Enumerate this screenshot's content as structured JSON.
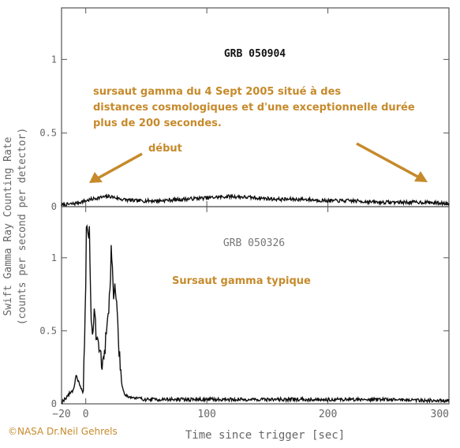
{
  "chart_data": [
    {
      "type": "line",
      "title": "GRB 050904",
      "annotation": "sursaut gamma du 4 Sept 2005 situé à des distances cosmologiques et d'une exceptionnelle durée plus de 200 secondes.",
      "annotation_lines": [
        "sursaut gamma du 4 Sept 2005 situé à des",
        "distances cosmologiques et d'une exceptionnelle durée",
        "plus de 200 secondes."
      ],
      "arrow_label": "début",
      "annotation_color": "#c68a2b",
      "xlim": [
        -20,
        300
      ],
      "ylim": [
        0,
        1.35
      ],
      "y_ticks": [
        0,
        0.5,
        1
      ],
      "y_tick_labels": [
        "0",
        "0.5",
        "1"
      ],
      "x_tick_labels_shown": false,
      "grid": false,
      "series_profile": {
        "x": [
          -20,
          -10,
          -5,
          0,
          10,
          20,
          30,
          40,
          60,
          80,
          100,
          120,
          140,
          160,
          180,
          200,
          220,
          240,
          260,
          280,
          300
        ],
        "y": [
          0.01,
          0.02,
          0.03,
          0.04,
          0.06,
          0.07,
          0.05,
          0.04,
          0.04,
          0.05,
          0.06,
          0.07,
          0.06,
          0.05,
          0.05,
          0.04,
          0.04,
          0.03,
          0.03,
          0.03,
          0.02
        ]
      }
    },
    {
      "type": "line",
      "title": "GRB 050326",
      "annotation": "Sursaut gamma typique",
      "annotation_color": "#c68a2b",
      "xlim": [
        -20,
        300
      ],
      "ylim": [
        0,
        1.35
      ],
      "y_ticks": [
        0,
        0.5,
        1
      ],
      "y_tick_labels": [
        "0",
        "0.5",
        "1"
      ],
      "x_ticks": [
        -20,
        0,
        100,
        200,
        300
      ],
      "x_tick_labels": [
        "−20",
        "0",
        "100",
        "200",
        "300"
      ],
      "xlabel": "Time since trigger [sec]",
      "grid": false,
      "series_profile": {
        "x": [
          -20,
          -10,
          -8,
          -6,
          -4,
          -2,
          0,
          0.5,
          1,
          2,
          3,
          4,
          5,
          6,
          7,
          8,
          9,
          10,
          12,
          14,
          15,
          16,
          18,
          20,
          21,
          22,
          23,
          24,
          25,
          26,
          27,
          28,
          30,
          32,
          35,
          40,
          50,
          60,
          80,
          100,
          150,
          200,
          250,
          300
        ],
        "y": [
          0.01,
          0.1,
          0.2,
          0.15,
          0.1,
          0.08,
          0.85,
          1.15,
          1.25,
          1.15,
          1.2,
          0.7,
          0.5,
          0.45,
          0.7,
          0.55,
          0.4,
          0.45,
          0.35,
          0.25,
          0.3,
          0.4,
          0.55,
          0.8,
          1.05,
          0.95,
          0.7,
          0.8,
          0.75,
          0.6,
          0.45,
          0.3,
          0.12,
          0.07,
          0.05,
          0.04,
          0.03,
          0.03,
          0.03,
          0.03,
          0.03,
          0.03,
          0.03,
          0.02
        ]
      }
    }
  ],
  "shared": {
    "ylabel_lines": [
      "Swift Gamma Ray Counting Rate",
      "(counts per second per detector)"
    ],
    "credit": "©NASA Dr.Neil Gehrels"
  },
  "colors": {
    "axis": "#555555",
    "trace": "#111111",
    "annotation": "#c68a2b",
    "credit": "#c68a2b"
  }
}
